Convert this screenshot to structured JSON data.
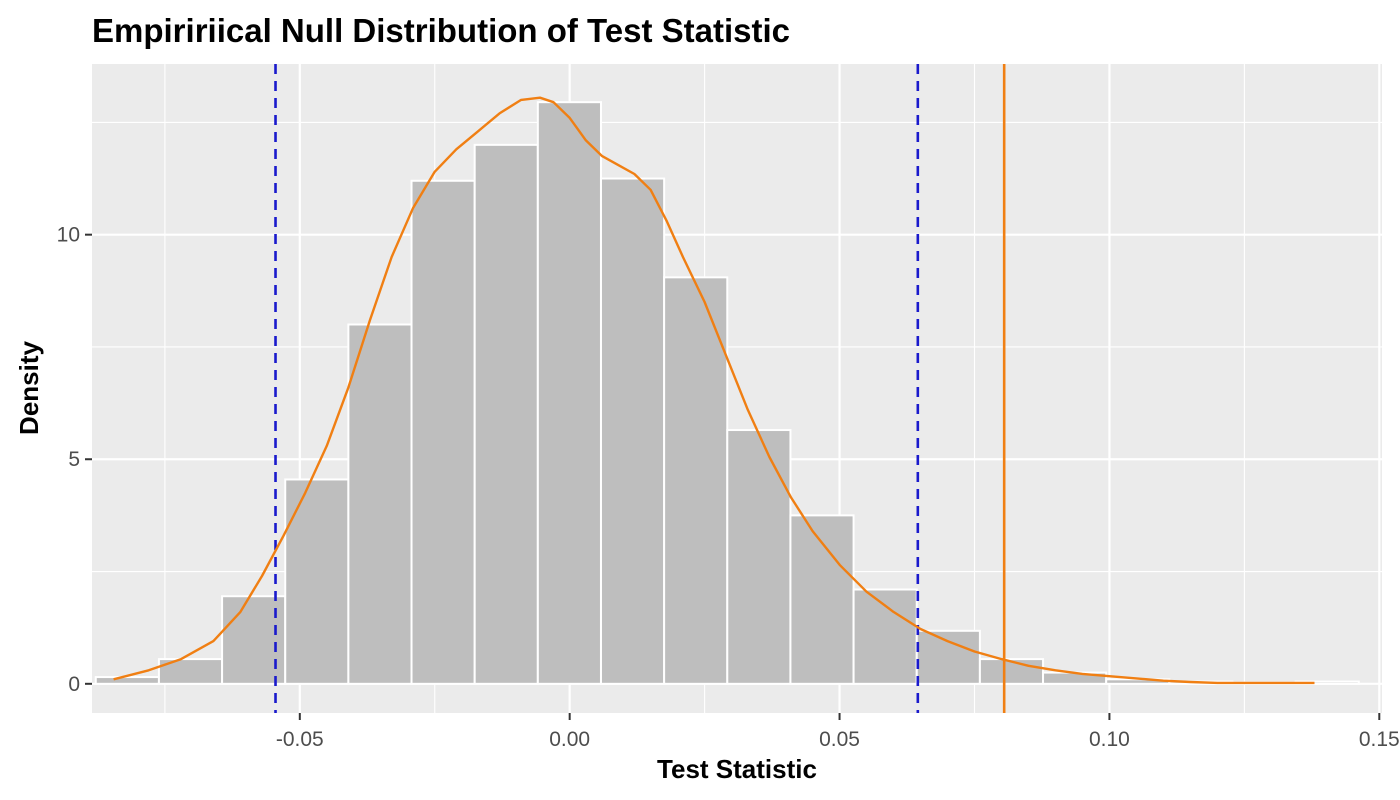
{
  "chart_data": {
    "type": "histogram",
    "title": "Empiririical Null Distribution of Test Statistic",
    "xlabel": "Test Statistic",
    "ylabel": "Density",
    "xlim": [
      -0.0885,
      0.1505
    ],
    "ylim": [
      -0.65,
      13.8
    ],
    "x_ticks": [
      -0.05,
      0.0,
      0.05,
      0.1,
      0.15
    ],
    "x_tick_labels": [
      "-0.05",
      "0.00",
      "0.05",
      "0.10",
      "0.15"
    ],
    "y_ticks": [
      0,
      5,
      10
    ],
    "y_tick_labels": [
      "0",
      "5",
      "10"
    ],
    "grid": true,
    "bin_width": 0.0117,
    "bins": [
      {
        "x0": -0.0878,
        "x1": -0.0761,
        "density": 0.15
      },
      {
        "x0": -0.0761,
        "x1": -0.0644,
        "density": 0.55
      },
      {
        "x0": -0.0644,
        "x1": -0.0527,
        "density": 1.95
      },
      {
        "x0": -0.0527,
        "x1": -0.041,
        "density": 4.55
      },
      {
        "x0": -0.041,
        "x1": -0.0293,
        "density": 8.0
      },
      {
        "x0": -0.0293,
        "x1": -0.0176,
        "density": 11.2
      },
      {
        "x0": -0.0176,
        "x1": -0.0059,
        "density": 12.0
      },
      {
        "x0": -0.0059,
        "x1": 0.0058,
        "density": 12.95
      },
      {
        "x0": 0.0058,
        "x1": 0.0175,
        "density": 11.25
      },
      {
        "x0": 0.0175,
        "x1": 0.0292,
        "density": 9.05
      },
      {
        "x0": 0.0292,
        "x1": 0.0409,
        "density": 5.65
      },
      {
        "x0": 0.0409,
        "x1": 0.0526,
        "density": 3.75
      },
      {
        "x0": 0.0526,
        "x1": 0.0643,
        "density": 2.1
      },
      {
        "x0": 0.0643,
        "x1": 0.076,
        "density": 1.18
      },
      {
        "x0": 0.076,
        "x1": 0.0877,
        "density": 0.55
      },
      {
        "x0": 0.0877,
        "x1": 0.0994,
        "density": 0.25
      },
      {
        "x0": 0.0994,
        "x1": 0.1111,
        "density": 0.1
      },
      {
        "x0": 0.1111,
        "x1": 0.1228,
        "density": 0.05
      },
      {
        "x0": 0.1228,
        "x1": 0.1345,
        "density": 0.03
      },
      {
        "x0": 0.1345,
        "x1": 0.1462,
        "density": 0.05
      }
    ],
    "density_curve": {
      "color": "#F07F13",
      "x": [
        -0.0845,
        -0.078,
        -0.072,
        -0.066,
        -0.061,
        -0.057,
        -0.053,
        -0.049,
        -0.045,
        -0.041,
        -0.037,
        -0.033,
        -0.029,
        -0.025,
        -0.021,
        -0.017,
        -0.013,
        -0.009,
        -0.0055,
        -0.003,
        0.0,
        0.003,
        0.006,
        0.009,
        0.012,
        0.015,
        0.018,
        0.021,
        0.025,
        0.029,
        0.033,
        0.037,
        0.041,
        0.045,
        0.05,
        0.055,
        0.06,
        0.065,
        0.07,
        0.075,
        0.08,
        0.085,
        0.09,
        0.095,
        0.1,
        0.105,
        0.11,
        0.115,
        0.12,
        0.125,
        0.13,
        0.138
      ],
      "y": [
        0.1,
        0.3,
        0.55,
        0.95,
        1.6,
        2.4,
        3.3,
        4.25,
        5.3,
        6.6,
        8.1,
        9.5,
        10.6,
        11.4,
        11.9,
        12.3,
        12.7,
        13.0,
        13.05,
        12.95,
        12.6,
        12.1,
        11.75,
        11.55,
        11.35,
        11.0,
        10.3,
        9.5,
        8.5,
        7.3,
        6.1,
        5.05,
        4.15,
        3.4,
        2.65,
        2.05,
        1.6,
        1.22,
        0.95,
        0.72,
        0.55,
        0.4,
        0.3,
        0.22,
        0.17,
        0.12,
        0.07,
        0.04,
        0.02,
        0.02,
        0.02,
        0.02
      ]
    },
    "reference_lines": [
      {
        "x": -0.0545,
        "style": "dashed",
        "color": "#1A1ACC"
      },
      {
        "x": 0.0645,
        "style": "dashed",
        "color": "#1A1ACC"
      },
      {
        "x": 0.0805,
        "style": "solid",
        "color": "#F07F13"
      }
    ],
    "colors": {
      "panel_background": "#EBEBEB",
      "grid": "#FFFFFF",
      "bar_fill": "#BEBEBE",
      "bar_outline": "#FFFFFF"
    }
  }
}
